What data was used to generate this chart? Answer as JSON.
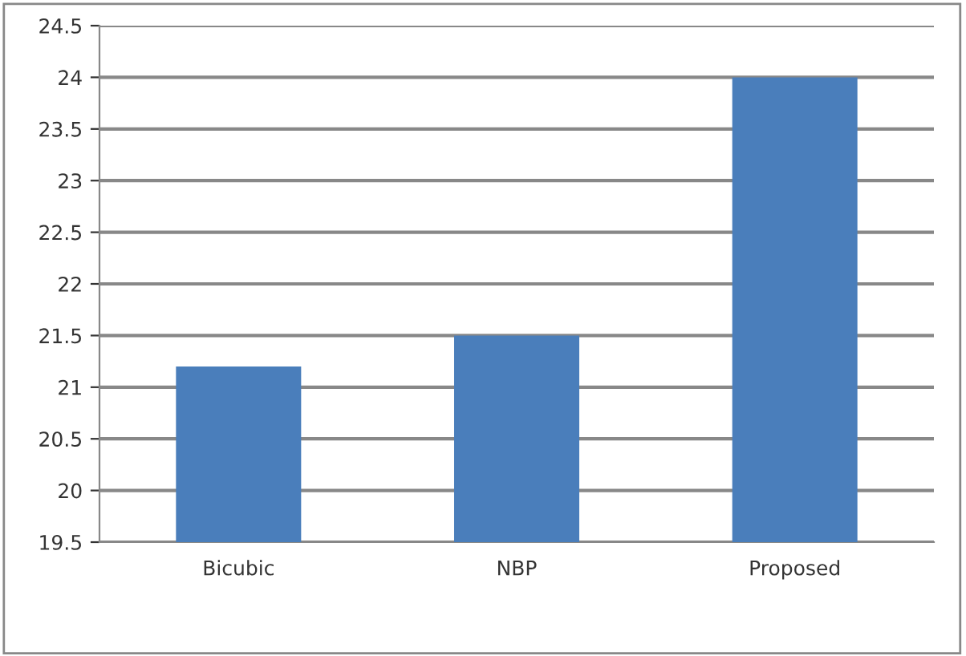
{
  "chart_data": {
    "type": "bar",
    "categories": [
      "Bicubic",
      "NBP",
      "Proposed"
    ],
    "values": [
      21.2,
      21.5,
      24.0
    ],
    "color": "#4a7ebb",
    "ylim": [
      19.5,
      24.5
    ],
    "yticks": [
      19.5,
      20,
      20.5,
      21,
      21.5,
      22,
      22.5,
      23,
      23.5,
      24,
      24.5
    ],
    "grid": "y"
  }
}
